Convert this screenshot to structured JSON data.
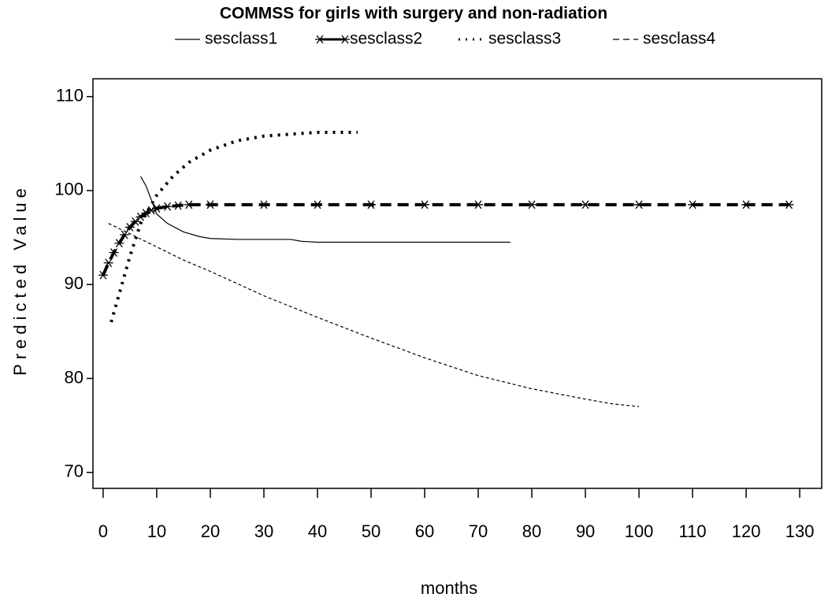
{
  "chart_data": {
    "type": "line",
    "title": "COMMSS for girls with surgery and non-radiation",
    "x_label": "months",
    "y_label": "Predicted Value",
    "xlim": [
      -1.9,
      134.1
    ],
    "ylim": [
      68.3,
      111.9
    ],
    "xticks": [
      0,
      10,
      20,
      30,
      40,
      50,
      60,
      70,
      80,
      90,
      100,
      110,
      120,
      130
    ],
    "yticks": [
      70,
      80,
      90,
      100,
      110
    ],
    "series": [
      {
        "name": "sesclass1",
        "color": "#000000",
        "style": "solid",
        "x": [
          7,
          8,
          9,
          10,
          12,
          15,
          18,
          20,
          25,
          30,
          35,
          37,
          40,
          50,
          60,
          70,
          76
        ],
        "values": [
          101.5,
          100.5,
          99,
          97.5,
          96.5,
          95.6,
          95.1,
          94.9,
          94.8,
          94.8,
          94.8,
          94.6,
          94.5,
          94.5,
          94.5,
          94.5,
          94.5
        ]
      },
      {
        "name": "sesclass2",
        "color": "#000000",
        "style": "star",
        "x": [
          0,
          1,
          2,
          3,
          4,
          5,
          6,
          7,
          8,
          9,
          10,
          12,
          14,
          16,
          20,
          30,
          40,
          50,
          60,
          70,
          80,
          90,
          100,
          110,
          120,
          128
        ],
        "values": [
          91,
          92.3,
          93.4,
          94.4,
          95.3,
          96.1,
          96.7,
          97.2,
          97.6,
          97.9,
          98.1,
          98.3,
          98.4,
          98.5,
          98.5,
          98.5,
          98.5,
          98.5,
          98.5,
          98.5,
          98.5,
          98.5,
          98.5,
          98.5,
          98.5,
          98.5
        ]
      },
      {
        "name": "sesclass3",
        "color": "#000000",
        "style": "dotted",
        "x": [
          1.5,
          3,
          5,
          7,
          10,
          13,
          16,
          20,
          25,
          30,
          35,
          40,
          45,
          47.5
        ],
        "values": [
          86,
          89,
          93,
          96.5,
          99.5,
          101.5,
          103,
          104.3,
          105.3,
          105.8,
          106,
          106.2,
          106.2,
          106.2
        ]
      },
      {
        "name": "sesclass4",
        "color": "#000000",
        "style": "dashed",
        "x": [
          1,
          5,
          10,
          15,
          20,
          30,
          40,
          50,
          60,
          70,
          80,
          90,
          95,
          100
        ],
        "values": [
          96.5,
          95.4,
          94,
          92.6,
          91.4,
          88.8,
          86.5,
          84.3,
          82.2,
          80.3,
          78.9,
          77.8,
          77.3,
          77
        ]
      }
    ]
  }
}
